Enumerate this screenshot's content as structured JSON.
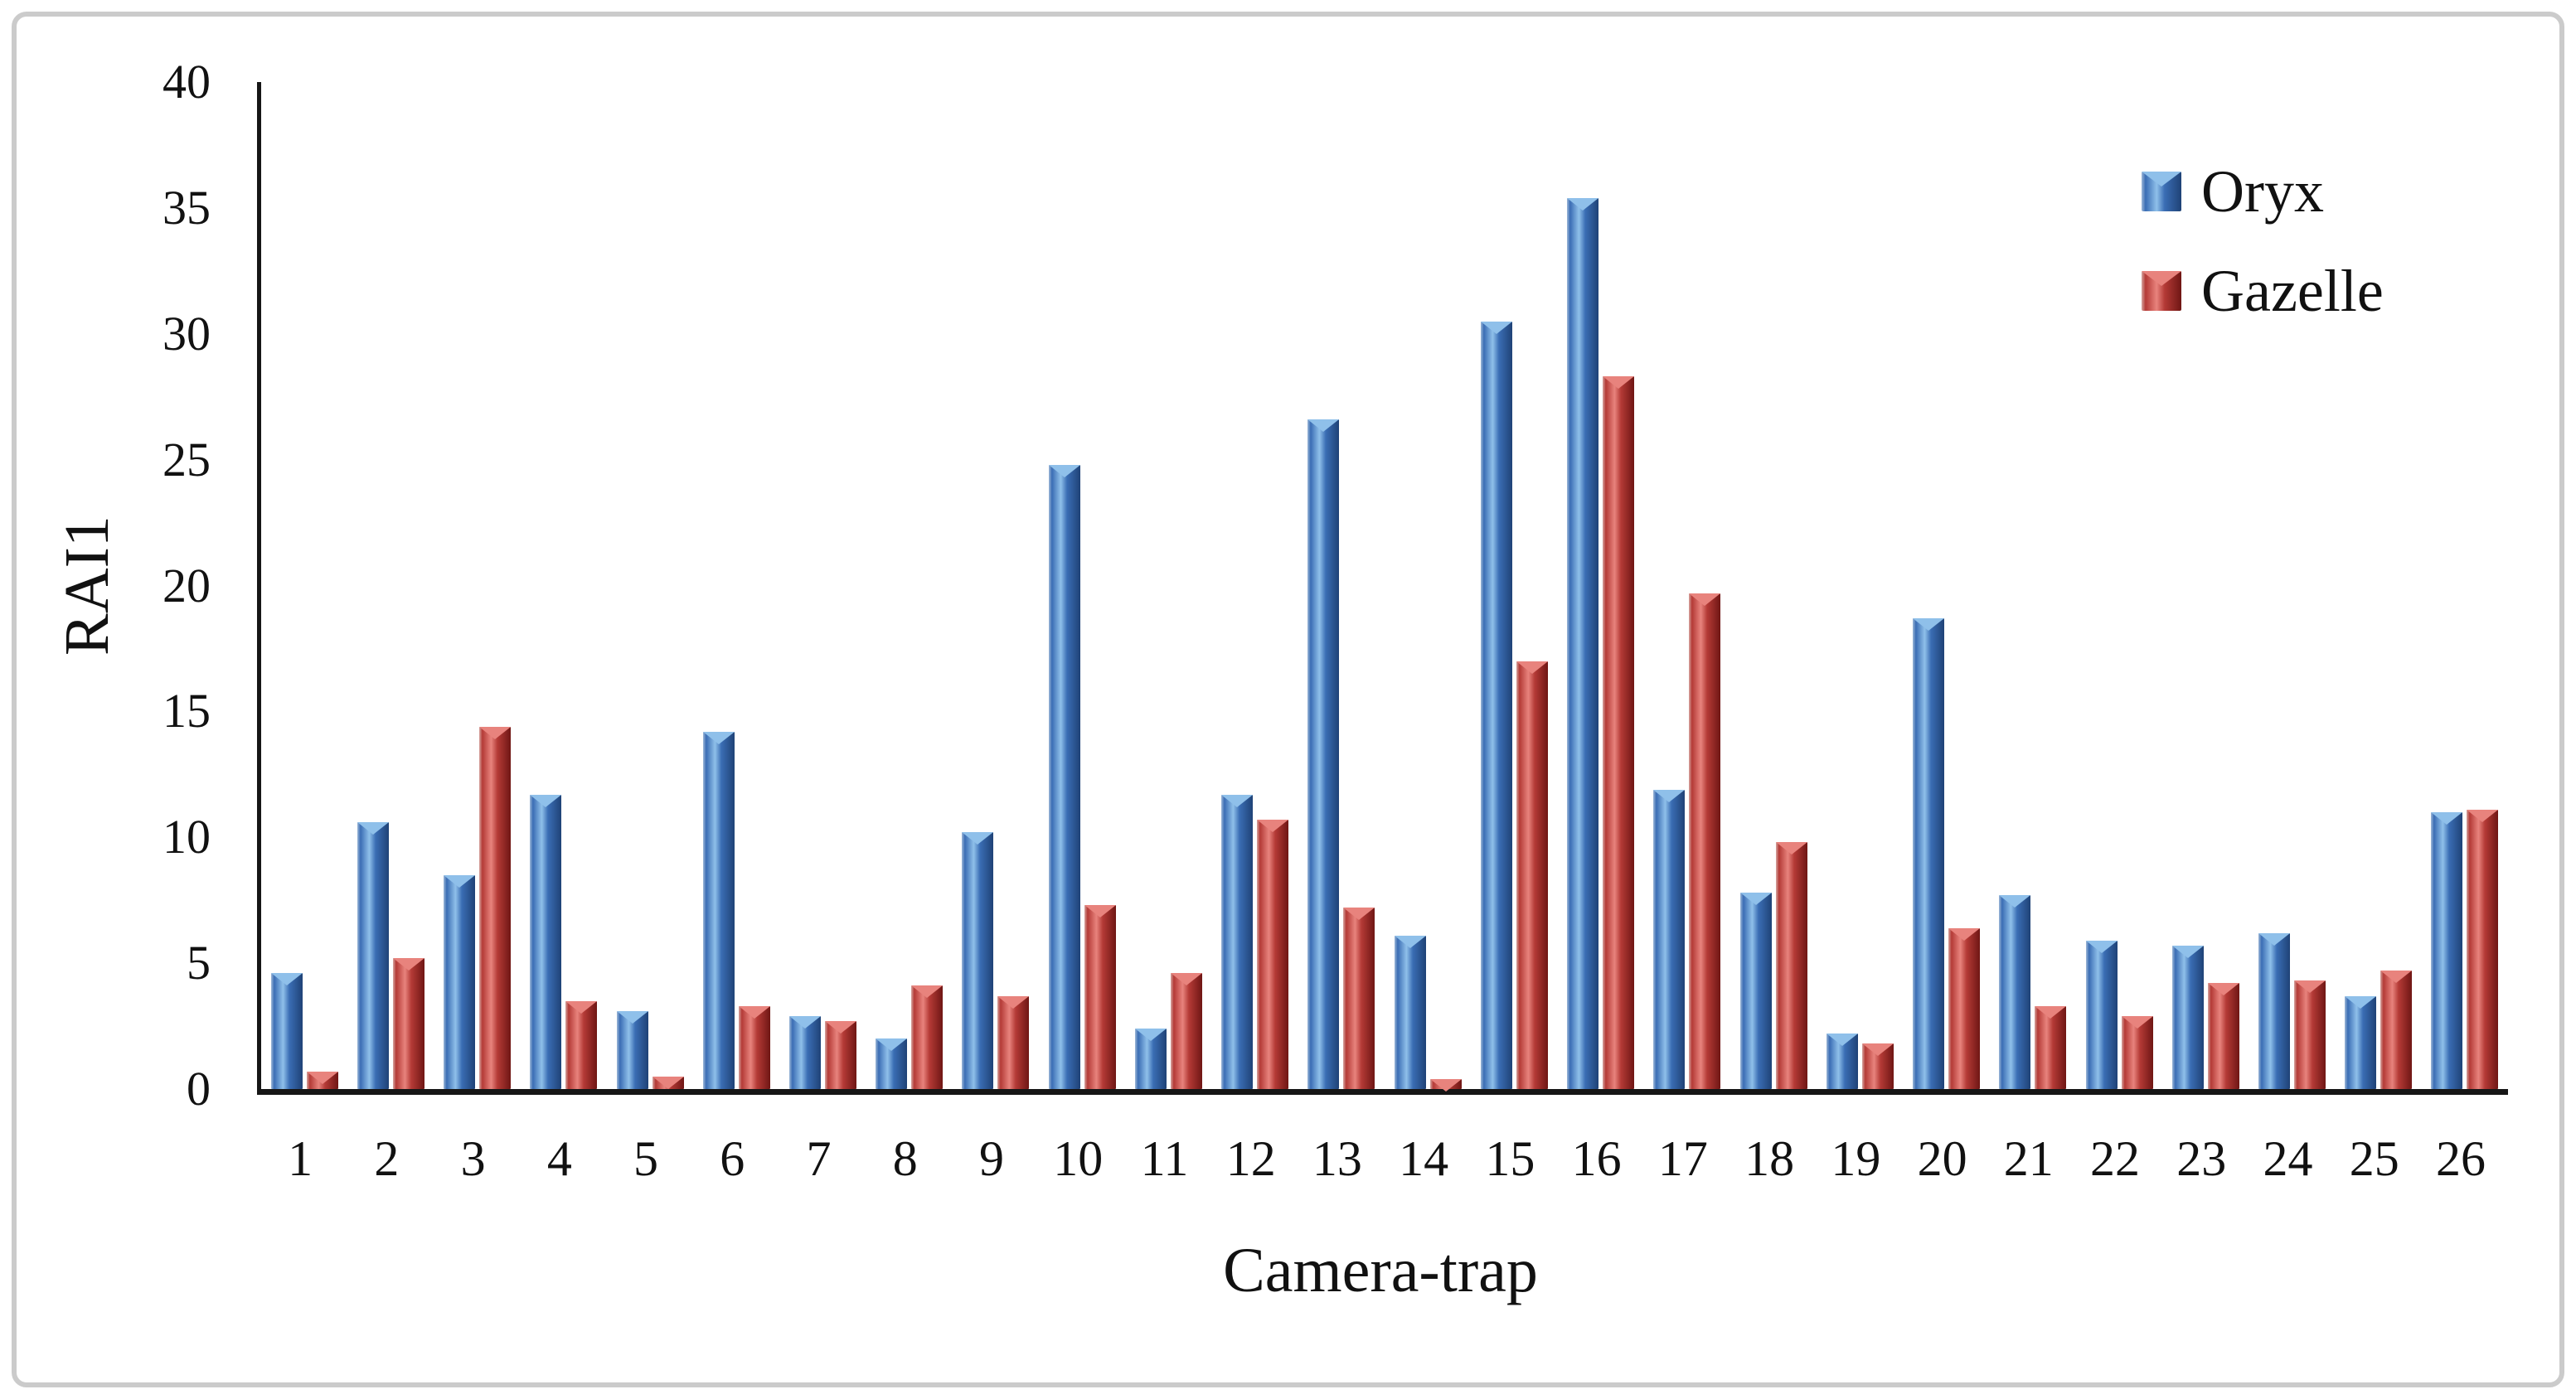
{
  "figure": {
    "background": "#ffffff",
    "border_color": "#cbcbcb",
    "axis_color": "#161616"
  },
  "chart_data": {
    "type": "bar",
    "title": "",
    "xlabel": "Camera-trap",
    "ylabel": "RAI1",
    "categories": [
      "1",
      "2",
      "3",
      "4",
      "5",
      "6",
      "7",
      "8",
      "9",
      "10",
      "11",
      "12",
      "13",
      "14",
      "15",
      "16",
      "17",
      "18",
      "19",
      "20",
      "21",
      "22",
      "23",
      "24",
      "25",
      "26"
    ],
    "series": [
      {
        "name": "Oryx",
        "color": "#3a6db4",
        "color_light": "#8fc0ea",
        "color_dark": "#1f4276",
        "color_edge": "#9db8d8",
        "values": [
          4.6,
          10.6,
          8.5,
          11.7,
          3.1,
          14.2,
          2.9,
          2.0,
          10.2,
          24.8,
          2.4,
          11.7,
          26.6,
          6.1,
          30.5,
          35.4,
          11.9,
          7.8,
          2.2,
          18.7,
          7.7,
          5.9,
          5.7,
          6.2,
          3.7,
          11.0
        ]
      },
      {
        "name": "Gazelle",
        "color": "#b43a36",
        "color_light": "#e8837d",
        "color_dark": "#6f1614",
        "color_edge": "#d6a5a0",
        "values": [
          0.7,
          5.2,
          14.4,
          3.5,
          0.5,
          3.3,
          2.7,
          4.1,
          3.7,
          7.3,
          4.6,
          10.7,
          7.2,
          0.4,
          17.0,
          28.3,
          19.7,
          9.8,
          1.8,
          6.4,
          3.3,
          2.9,
          4.2,
          4.3,
          4.7,
          11.1
        ]
      }
    ],
    "ylim": [
      0,
      40
    ],
    "ytick_step": 5,
    "grid": false,
    "legend_position": "top-right"
  }
}
